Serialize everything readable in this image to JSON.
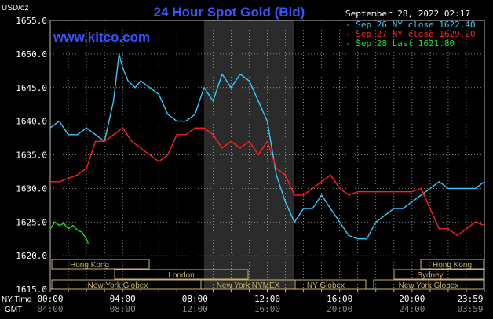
{
  "header": {
    "title": "24 Hour Spot Gold (Bid)",
    "watermark": "www.kitco.com",
    "timestamp": "September 28, 2022 02:17",
    "unit": "USD/oz"
  },
  "legend": [
    {
      "text": "Sep 26 NY close 1622.40",
      "color": "#33ccff"
    },
    {
      "text": "Sep 27 NY close 1629.20",
      "color": "#ff2020"
    },
    {
      "text": "Sep 28 Last 1621.80",
      "color": "#22dd22"
    }
  ],
  "axis": {
    "y_ticks": [
      "1655.0",
      "1650.0",
      "1645.0",
      "1640.0",
      "1635.0",
      "1630.0",
      "1625.0",
      "1620.0",
      "1615.0"
    ],
    "ny_time_label": "NY Time",
    "gmt_label": "GMT",
    "ny_ticks": [
      "00:00",
      "04:00",
      "08:00",
      "12:00",
      "16:00",
      "20:00",
      "23:59"
    ],
    "gmt_ticks": [
      "04:00",
      "08:00",
      "12:00",
      "16:00",
      "20:00",
      "24:00",
      "03:59"
    ]
  },
  "sessions": {
    "hong_kong_left": "Hong Kong",
    "london": "London",
    "ny_globex_left": "New York Globex",
    "ny_nymex": "New York NYMEX",
    "ny_globex_mid": "NY Globex",
    "hong_kong_right": "Hong Kong",
    "sydney": "Sydney",
    "ny_globex_right": "New York Globex"
  },
  "colors": {
    "cyan": "#33ccff",
    "red": "#ff2020",
    "green": "#22dd22",
    "title": "#3355ff",
    "band": "#2b2b2b"
  },
  "chart_data": {
    "type": "line",
    "title": "24 Hour Spot Gold (Bid)",
    "ylabel": "USD/oz",
    "xlim_hours": [
      0,
      24
    ],
    "ylim": [
      1615,
      1655
    ],
    "highlight_hours": [
      8.5,
      13.5
    ],
    "series": [
      {
        "name": "Sep 26 NY close 1622.40",
        "color": "#33ccff",
        "x": [
          0,
          0.5,
          1,
          1.5,
          2,
          2.5,
          3,
          3.5,
          3.8,
          4,
          4.3,
          4.7,
          5,
          5.5,
          6,
          6.5,
          7,
          7.5,
          8,
          8.5,
          9,
          9.5,
          10,
          10.5,
          11,
          11.5,
          12,
          12.5,
          13,
          13.5,
          14,
          14.5,
          15,
          15.5,
          16,
          16.5,
          17,
          17.5,
          18,
          18.5,
          19,
          19.5,
          20,
          20.5,
          21,
          21.5,
          22,
          22.5,
          23,
          23.5,
          24
        ],
        "y": [
          1639,
          1640,
          1638,
          1638,
          1639,
          1638,
          1637,
          1643,
          1650,
          1648,
          1646,
          1645,
          1646,
          1645,
          1644,
          1641,
          1640,
          1640,
          1641,
          1645,
          1643,
          1647,
          1645,
          1647,
          1646,
          1643,
          1640,
          1632,
          1628,
          1625,
          1627,
          1627,
          1629,
          1627,
          1625,
          1623,
          1622.5,
          1622.5,
          1625,
          1626,
          1627,
          1627,
          1628,
          1629,
          1630,
          1631,
          1630,
          1630,
          1630,
          1630,
          1631
        ]
      },
      {
        "name": "Sep 27 NY close 1629.20",
        "color": "#ff2020",
        "x": [
          0,
          0.5,
          1,
          1.5,
          2,
          2.5,
          3,
          3.5,
          4,
          4.5,
          5,
          5.5,
          6,
          6.5,
          7,
          7.5,
          8,
          8.5,
          9,
          9.5,
          10,
          10.5,
          11,
          11.5,
          12,
          12.5,
          13,
          13.5,
          14,
          14.5,
          15,
          15.5,
          16,
          16.5,
          17,
          17.5,
          18,
          18.5,
          19,
          19.5,
          20,
          20.5,
          21,
          21.5,
          22,
          22.5,
          23,
          23.5,
          24
        ],
        "y": [
          1631,
          1631,
          1631.5,
          1632,
          1633,
          1637,
          1637,
          1638,
          1639,
          1637,
          1636,
          1635,
          1634,
          1635,
          1638,
          1638,
          1639,
          1639,
          1638,
          1636,
          1637,
          1636,
          1637,
          1635,
          1637,
          1633,
          1632,
          1629,
          1629,
          1630,
          1631,
          1632,
          1630,
          1629,
          1629.5,
          1629.5,
          1629.5,
          1629.5,
          1629.5,
          1629.5,
          1629.5,
          1630,
          1627,
          1624,
          1624,
          1623,
          1624,
          1625,
          1624.5
        ]
      },
      {
        "name": "Sep 28 Last 1621.80",
        "color": "#22dd22",
        "x": [
          0,
          0.25,
          0.5,
          0.75,
          1,
          1.25,
          1.5,
          1.75,
          2,
          2.1
        ],
        "y": [
          1624,
          1625,
          1624.5,
          1624.8,
          1624,
          1624.5,
          1623.8,
          1623.5,
          1622.5,
          1621.8
        ]
      }
    ]
  }
}
